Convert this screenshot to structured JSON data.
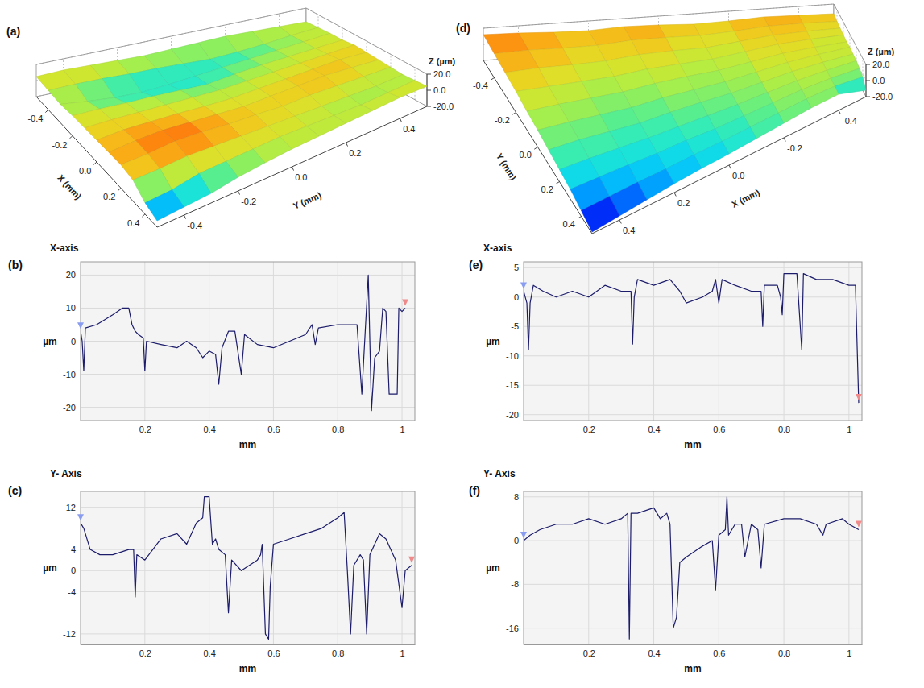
{
  "chart_data": [
    {
      "type": "surface",
      "panel_label": "(a)",
      "x_label": "X (mm)",
      "y_label": "Y (mm)",
      "z_label": "Z (µm)",
      "xlim": [
        -0.5,
        0.5
      ],
      "ylim": [
        -0.5,
        0.5
      ],
      "zlim": [
        -20,
        20
      ],
      "xticks": [
        -0.4,
        -0.2,
        {
          "value": 0,
          "label": "0.0"
        },
        0.2,
        0.4
      ],
      "yticks": [
        -0.4,
        -0.2,
        {
          "value": 0,
          "label": "0.0"
        },
        0.2,
        0.4
      ],
      "zticks": [
        {
          "value": -20,
          "label": "-20.0"
        },
        {
          "value": 0,
          "label": "0.0"
        },
        {
          "value": 20,
          "label": "20.0"
        }
      ],
      "grid": true,
      "x": [
        -0.5,
        -0.4,
        -0.3,
        -0.2,
        -0.1,
        0,
        0.1,
        0.2,
        0.3,
        0.4,
        0.5
      ],
      "y": [
        -0.5,
        -0.4,
        -0.3,
        -0.2,
        -0.1,
        0,
        0.1,
        0.2,
        0.3,
        0.4,
        0.5
      ],
      "z": [
        [
          5,
          4,
          3,
          5,
          6,
          7,
          8,
          9,
          6,
          -6,
          -12
        ],
        [
          6,
          4,
          -2,
          4,
          6,
          9,
          11,
          10,
          7,
          -4,
          -10
        ],
        [
          5,
          3,
          -6,
          2,
          5,
          8,
          12,
          13,
          9,
          2,
          -8
        ],
        [
          4,
          1,
          -8,
          1,
          4,
          7,
          10,
          12,
          8,
          3,
          -3
        ],
        [
          3,
          0,
          -7,
          -1,
          3,
          5,
          8,
          9,
          7,
          4,
          0
        ],
        [
          4,
          -2,
          -5,
          -3,
          2,
          4,
          6,
          8,
          6,
          5,
          2
        ],
        [
          5,
          -4,
          -3,
          0,
          3,
          5,
          7,
          6,
          5,
          4,
          3
        ],
        [
          6,
          -3,
          -1,
          2,
          4,
          6,
          8,
          7,
          4,
          3,
          4
        ],
        [
          5,
          -1,
          1,
          3,
          5,
          7,
          9,
          6,
          3,
          2,
          5
        ],
        [
          4,
          2,
          3,
          4,
          6,
          8,
          7,
          5,
          2,
          3,
          6
        ],
        [
          3,
          4,
          5,
          5,
          7,
          6,
          5,
          4,
          3,
          4,
          5
        ]
      ]
    },
    {
      "type": "line",
      "panel_label": "(b)",
      "title": "X-axis",
      "x_label": "mm",
      "y_label": "µm",
      "xlim": [
        0,
        1.04
      ],
      "ylim": [
        -24,
        24
      ],
      "xticks": [
        0.2,
        0.4,
        0.6,
        0.8,
        1
      ],
      "yticks": [
        -20,
        -10,
        0,
        10,
        20
      ],
      "grid": true,
      "color": "#1c1c6b",
      "x": [
        0,
        0.005,
        0.01,
        0.015,
        0.05,
        0.1,
        0.13,
        0.15,
        0.16,
        0.17,
        0.18,
        0.195,
        0.2,
        0.205,
        0.25,
        0.3,
        0.33,
        0.36,
        0.38,
        0.4,
        0.42,
        0.43,
        0.44,
        0.46,
        0.48,
        0.5,
        0.51,
        0.55,
        0.6,
        0.65,
        0.7,
        0.72,
        0.73,
        0.74,
        0.8,
        0.86,
        0.875,
        0.885,
        0.895,
        0.905,
        0.915,
        0.93,
        0.94,
        0.95,
        0.96,
        0.985,
        0.99,
        1.0,
        1.01
      ],
      "values": [
        3,
        0,
        -9,
        4,
        5,
        8,
        10,
        10,
        5,
        3,
        2,
        1,
        -9,
        0,
        -1,
        -2,
        0,
        -2,
        -5,
        -3,
        -4,
        -13,
        -2,
        3,
        3,
        -10,
        2,
        -1,
        -2,
        0,
        2,
        5,
        -1,
        4,
        5,
        5,
        -16,
        2,
        20,
        -21,
        -5,
        -3,
        10,
        9,
        -16,
        -16,
        10,
        9,
        10
      ]
    },
    {
      "type": "line",
      "panel_label": "(c)",
      "title": "Y- Axis",
      "x_label": "mm",
      "y_label": "µm",
      "xlim": [
        0,
        1.04
      ],
      "ylim": [
        -14,
        15
      ],
      "xticks": [
        0.2,
        0.4,
        0.6,
        0.8,
        1
      ],
      "yticks": [
        -12,
        -4,
        0,
        4,
        12
      ],
      "grid": true,
      "color": "#1c1c6b",
      "x": [
        0,
        0.01,
        0.03,
        0.06,
        0.1,
        0.15,
        0.165,
        0.17,
        0.175,
        0.2,
        0.25,
        0.3,
        0.33,
        0.36,
        0.38,
        0.385,
        0.4,
        0.41,
        0.42,
        0.43,
        0.45,
        0.46,
        0.47,
        0.5,
        0.55,
        0.56,
        0.565,
        0.575,
        0.585,
        0.59,
        0.6,
        0.65,
        0.7,
        0.75,
        0.8,
        0.82,
        0.83,
        0.84,
        0.85,
        0.87,
        0.88,
        0.89,
        0.9,
        0.93,
        0.95,
        0.98,
        1.0,
        1.01,
        1.03
      ],
      "values": [
        9,
        8,
        4,
        3,
        3,
        4,
        4,
        -5,
        3,
        2,
        6,
        7,
        5,
        9,
        10,
        14,
        14,
        5,
        6,
        4,
        3,
        -8,
        2,
        0,
        2,
        3,
        5,
        -12,
        -13,
        -3,
        5,
        6,
        7,
        8,
        10,
        11,
        0,
        -12,
        1,
        3,
        2,
        -12,
        3,
        7,
        6,
        2,
        -7,
        0,
        1
      ]
    },
    {
      "type": "surface",
      "panel_label": "(d)",
      "x_label": "X (mm)",
      "y_label": "Y (mm)",
      "z_label": "Z (µm)",
      "xlim": [
        -0.5,
        0.5
      ],
      "ylim": [
        -0.5,
        0.5
      ],
      "zlim": [
        -20,
        20
      ],
      "xticks": [
        -0.4,
        -0.2,
        {
          "value": 0,
          "label": "0.0"
        },
        0.2,
        0.4
      ],
      "yticks": [
        -0.4,
        -0.2,
        {
          "value": 0,
          "label": "0.0"
        },
        0.2,
        0.4
      ],
      "zticks": [
        {
          "value": -20,
          "label": "-20.0"
        },
        {
          "value": 0,
          "label": "0.0"
        },
        {
          "value": 20,
          "label": "20.0"
        }
      ],
      "grid": true,
      "x": [
        -0.5,
        -0.4,
        -0.3,
        -0.2,
        -0.1,
        0,
        0.1,
        0.2,
        0.3,
        0.4,
        0.5
      ],
      "y": [
        -0.5,
        -0.4,
        -0.3,
        -0.2,
        -0.1,
        0,
        0.1,
        0.2,
        0.3,
        0.4,
        0.5
      ],
      "z": [
        [
          8,
          9,
          10,
          8,
          7,
          9,
          10,
          8,
          9,
          11,
          12
        ],
        [
          6,
          8,
          9,
          7,
          6,
          8,
          9,
          7,
          8,
          10,
          10
        ],
        [
          5,
          7,
          8,
          6,
          4,
          6,
          7,
          5,
          6,
          8,
          8
        ],
        [
          4,
          6,
          7,
          5,
          3,
          4,
          5,
          3,
          4,
          5,
          6
        ],
        [
          3,
          5,
          6,
          4,
          2,
          3,
          3,
          1,
          2,
          3,
          3
        ],
        [
          4,
          5,
          5,
          3,
          1,
          1,
          1,
          -1,
          0,
          1,
          1
        ],
        [
          3,
          4,
          4,
          2,
          0,
          0,
          -1,
          -3,
          -2,
          -1,
          -2
        ],
        [
          2,
          3,
          3,
          1,
          -1,
          -2,
          -3,
          -4,
          -4,
          -4,
          -5
        ],
        [
          0,
          2,
          2,
          0,
          -2,
          -4,
          -4,
          -6,
          -6,
          -7,
          -8
        ],
        [
          -3,
          1,
          1,
          -1,
          -3,
          -5,
          -6,
          -8,
          -9,
          -11,
          -13
        ],
        [
          -12,
          0,
          0,
          -2,
          -4,
          -6,
          -7,
          -9,
          -12,
          -15,
          -18
        ]
      ]
    },
    {
      "type": "line",
      "panel_label": "(e)",
      "title": "X-axis",
      "x_label": "mm",
      "y_label": "µm",
      "xlim": [
        0,
        1.04
      ],
      "ylim": [
        -21,
        6
      ],
      "xticks": [
        0.2,
        0.4,
        0.6,
        0.8,
        1
      ],
      "yticks": [
        -20,
        -15,
        -10,
        -5,
        0,
        5
      ],
      "grid": true,
      "color": "#1c1c6b",
      "x": [
        0,
        0.01,
        0.015,
        0.02,
        0.03,
        0.06,
        0.1,
        0.15,
        0.2,
        0.25,
        0.3,
        0.33,
        0.335,
        0.34,
        0.35,
        0.4,
        0.45,
        0.48,
        0.5,
        0.55,
        0.58,
        0.59,
        0.6,
        0.61,
        0.65,
        0.7,
        0.73,
        0.735,
        0.74,
        0.78,
        0.79,
        0.795,
        0.8,
        0.84,
        0.855,
        0.86,
        0.9,
        0.95,
        1.0,
        1.02,
        1.03
      ],
      "values": [
        1,
        -1,
        -9,
        -1,
        2,
        1,
        0,
        1,
        0,
        2,
        1,
        1,
        -8,
        0,
        3,
        2,
        3,
        1,
        -1,
        0,
        1,
        3,
        -1,
        3,
        2,
        1,
        1,
        -5,
        2,
        2,
        0,
        -3,
        4,
        4,
        -9,
        4,
        3,
        3,
        2,
        2,
        -18
      ]
    },
    {
      "type": "line",
      "panel_label": "(f)",
      "title": "Y- Axis",
      "x_label": "mm",
      "y_label": "µm",
      "xlim": [
        0,
        1.04
      ],
      "ylim": [
        -19,
        9
      ],
      "xticks": [
        0.2,
        0.4,
        0.6,
        0.8,
        1
      ],
      "yticks": [
        -16,
        -8,
        0,
        8
      ],
      "grid": true,
      "color": "#1c1c6b",
      "x": [
        0,
        0.02,
        0.05,
        0.1,
        0.15,
        0.2,
        0.25,
        0.3,
        0.32,
        0.325,
        0.33,
        0.35,
        0.4,
        0.42,
        0.44,
        0.45,
        0.46,
        0.47,
        0.48,
        0.5,
        0.55,
        0.58,
        0.59,
        0.6,
        0.62,
        0.625,
        0.63,
        0.65,
        0.67,
        0.68,
        0.7,
        0.72,
        0.73,
        0.74,
        0.8,
        0.85,
        0.9,
        0.92,
        0.93,
        0.98,
        1.0,
        1.03
      ],
      "values": [
        0,
        1,
        2,
        3,
        3,
        4,
        3,
        4,
        5,
        -18,
        5,
        5,
        6,
        4,
        5,
        3,
        -16,
        -14,
        -4,
        -3,
        -1,
        0,
        -9,
        1,
        2,
        8,
        1,
        3,
        3,
        -3,
        3,
        2,
        -5,
        3,
        4,
        4,
        3,
        1,
        3,
        4,
        3,
        2
      ]
    }
  ]
}
